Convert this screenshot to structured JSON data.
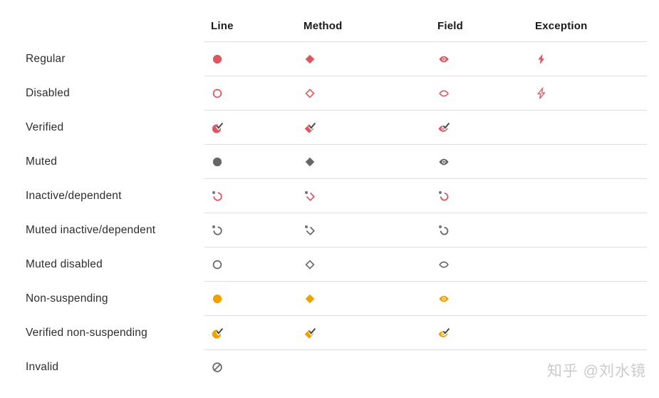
{
  "page": {
    "background": "#FFFFFF"
  },
  "colors": {
    "red": "#DB5860",
    "amber": "#F0A100",
    "gray": "#666666",
    "dot": "#787878",
    "check": "#3E4548",
    "hairline": "#DEDEDE",
    "header_text": "#1A1A1A",
    "label_text": "#2D2D2D",
    "watermark": "#CBCBCB"
  },
  "table": {
    "columns": [
      {
        "label": "Line"
      },
      {
        "label": "Method"
      },
      {
        "label": "Field"
      },
      {
        "label": "Exception"
      }
    ],
    "rows": [
      {
        "label": "Regular",
        "cells": [
          {
            "name": "regular-line-breakpoint-icon",
            "shape": "circle",
            "variant": "filled",
            "color": "red",
            "check": false
          },
          {
            "name": "regular-method-breakpoint-icon",
            "shape": "diamond",
            "variant": "filled",
            "color": "red",
            "check": false
          },
          {
            "name": "regular-field-watchpoint-icon",
            "shape": "eye",
            "variant": "filled",
            "color": "red",
            "check": false
          },
          {
            "name": "regular-exception-breakpoint-icon",
            "shape": "bolt",
            "variant": "filled",
            "color": "red",
            "check": false
          }
        ]
      },
      {
        "label": "Disabled",
        "cells": [
          {
            "name": "disabled-line-breakpoint-icon",
            "shape": "circle",
            "variant": "outline",
            "color": "red",
            "check": false
          },
          {
            "name": "disabled-method-breakpoint-icon",
            "shape": "diamond",
            "variant": "outline",
            "color": "red",
            "check": false
          },
          {
            "name": "disabled-field-watchpoint-icon",
            "shape": "eye",
            "variant": "outline",
            "color": "red",
            "check": false
          },
          {
            "name": "disabled-exception-breakpoint-icon",
            "shape": "bolt",
            "variant": "outline",
            "color": "red",
            "check": false
          }
        ]
      },
      {
        "label": "Verified",
        "cells": [
          {
            "name": "verified-line-breakpoint-icon",
            "shape": "circle",
            "variant": "filled",
            "color": "red",
            "check": true
          },
          {
            "name": "verified-method-breakpoint-icon",
            "shape": "diamond",
            "variant": "filled",
            "color": "red",
            "check": true
          },
          {
            "name": "verified-field-watchpoint-icon",
            "shape": "eye",
            "variant": "filled",
            "color": "red",
            "check": true
          },
          null
        ]
      },
      {
        "label": "Muted",
        "cells": [
          {
            "name": "muted-line-breakpoint-icon",
            "shape": "circle",
            "variant": "filled",
            "color": "gray",
            "check": false
          },
          {
            "name": "muted-method-breakpoint-icon",
            "shape": "diamond",
            "variant": "filled",
            "color": "gray",
            "check": false
          },
          {
            "name": "muted-field-watchpoint-icon",
            "shape": "eye",
            "variant": "filled",
            "color": "gray",
            "check": false
          },
          null
        ]
      },
      {
        "label": "Inactive/dependent",
        "cells": [
          {
            "name": "inactive-line-breakpoint-icon",
            "shape": "circle",
            "variant": "dependent",
            "color": "red",
            "check": false
          },
          {
            "name": "inactive-method-breakpoint-icon",
            "shape": "diamond",
            "variant": "dependent",
            "color": "red",
            "check": false
          },
          {
            "name": "inactive-field-watchpoint-icon",
            "shape": "eye",
            "variant": "dependent",
            "color": "red",
            "check": false
          },
          null
        ]
      },
      {
        "label": "Muted inactive/dependent",
        "cells": [
          {
            "name": "muted-inactive-line-breakpoint-icon",
            "shape": "circle",
            "variant": "dependent",
            "color": "gray",
            "check": false
          },
          {
            "name": "muted-inactive-method-breakpoint-icon",
            "shape": "diamond",
            "variant": "dependent",
            "color": "gray",
            "check": false
          },
          {
            "name": "muted-inactive-field-watchpoint-icon",
            "shape": "eye",
            "variant": "dependent",
            "color": "gray",
            "check": false
          },
          null
        ]
      },
      {
        "label": "Muted disabled",
        "cells": [
          {
            "name": "muted-disabled-line-breakpoint-icon",
            "shape": "circle",
            "variant": "outline",
            "color": "gray",
            "check": false
          },
          {
            "name": "muted-disabled-method-breakpoint-icon",
            "shape": "diamond",
            "variant": "outline",
            "color": "gray",
            "check": false
          },
          {
            "name": "muted-disabled-field-watchpoint-icon",
            "shape": "eye",
            "variant": "outline",
            "color": "gray",
            "check": false
          },
          null
        ]
      },
      {
        "label": "Non-suspending",
        "cells": [
          {
            "name": "non-suspending-line-breakpoint-icon",
            "shape": "circle",
            "variant": "filled",
            "color": "amber",
            "check": false
          },
          {
            "name": "non-suspending-method-breakpoint-icon",
            "shape": "diamond",
            "variant": "filled",
            "color": "amber",
            "check": false
          },
          {
            "name": "non-suspending-field-watchpoint-icon",
            "shape": "eye",
            "variant": "filled",
            "color": "amber",
            "check": false
          },
          null
        ]
      },
      {
        "label": "Verified non-suspending",
        "cells": [
          {
            "name": "verified-non-suspending-line-breakpoint-icon",
            "shape": "circle",
            "variant": "filled",
            "color": "amber",
            "check": true
          },
          {
            "name": "verified-non-suspending-method-breakpoint-icon",
            "shape": "diamond",
            "variant": "filled",
            "color": "amber",
            "check": true
          },
          {
            "name": "verified-non-suspending-field-watchpoint-icon",
            "shape": "eye",
            "variant": "filled",
            "color": "amber",
            "check": true
          },
          null
        ]
      },
      {
        "label": "Invalid",
        "cells": [
          {
            "name": "invalid-breakpoint-icon",
            "shape": "circle",
            "variant": "invalid",
            "color": "gray",
            "check": false
          },
          null,
          null,
          null
        ]
      }
    ]
  },
  "watermark": {
    "text": "知乎 @刘水镜"
  }
}
